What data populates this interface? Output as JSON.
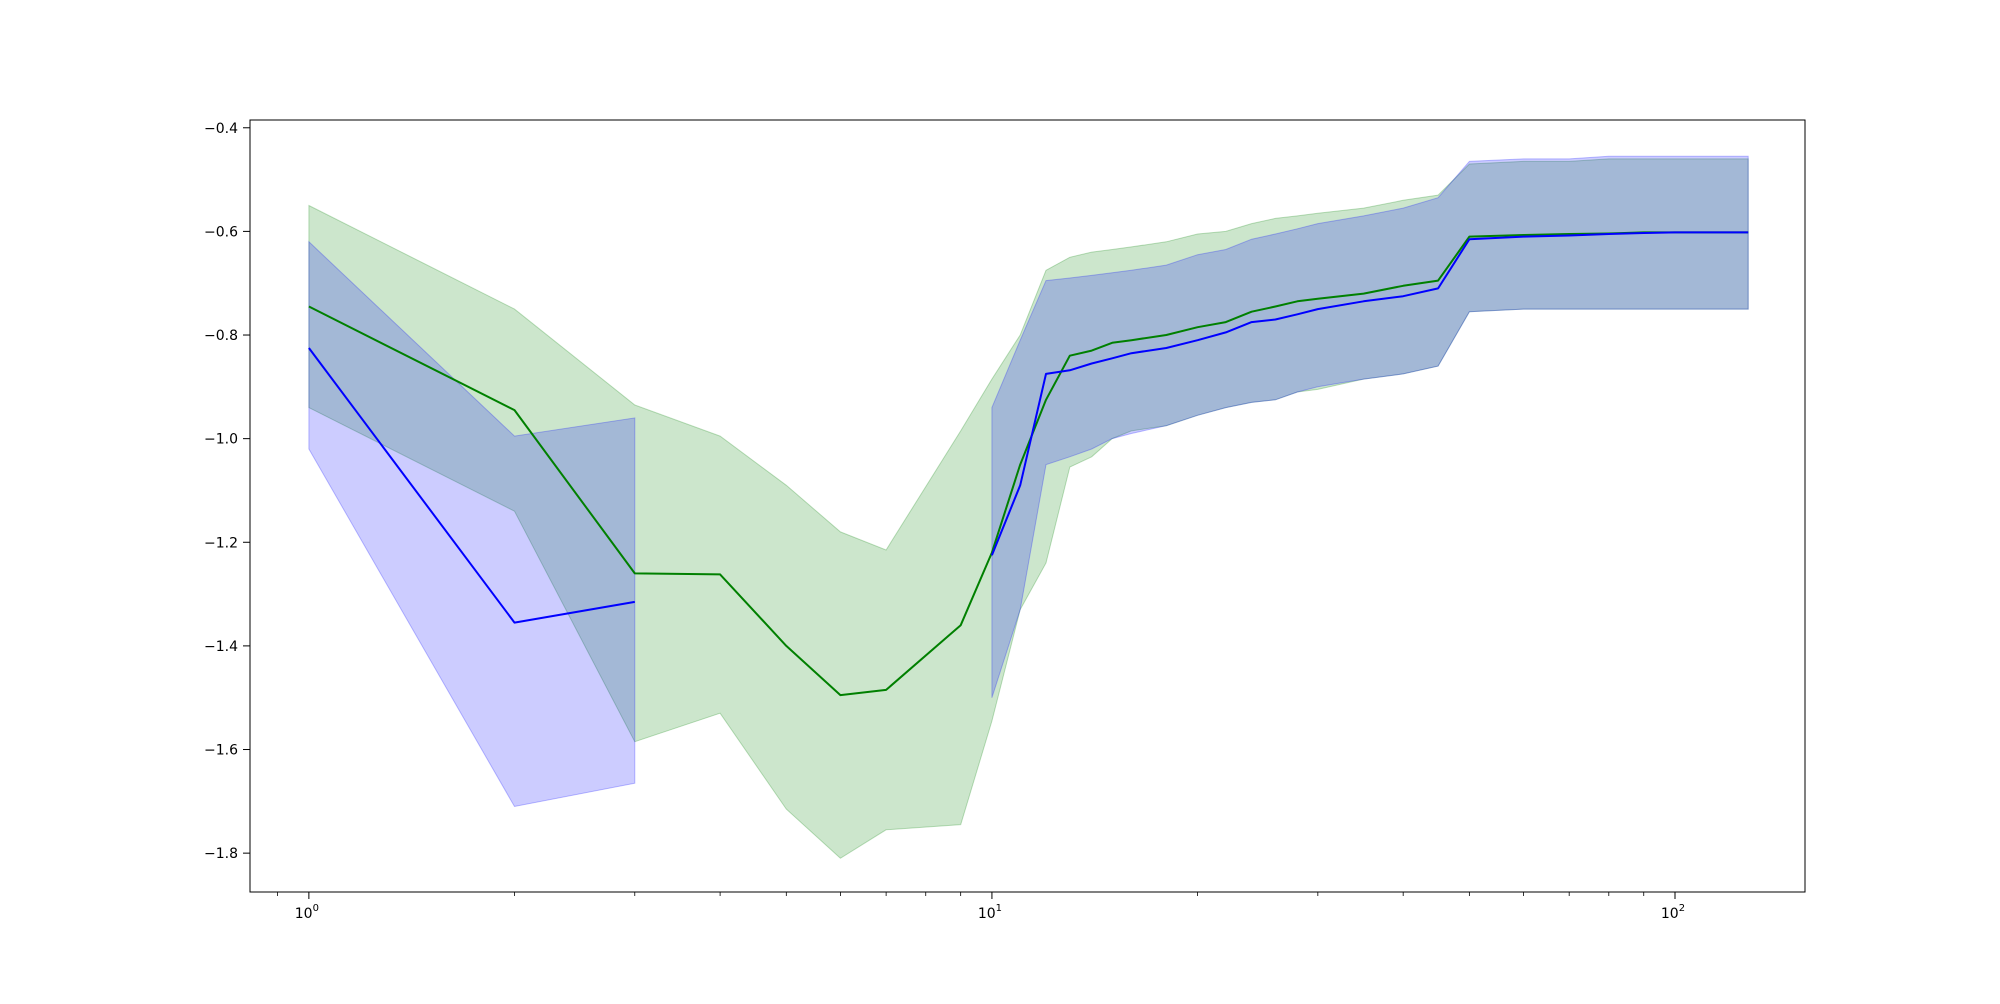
{
  "chart_data": {
    "type": "line",
    "xscale": "log",
    "xlim": [
      0.82,
      155
    ],
    "ylim": [
      -1.875,
      -0.385
    ],
    "xticks": [
      {
        "value": 1,
        "base": "10",
        "exp": "0"
      },
      {
        "value": 10,
        "base": "10",
        "exp": "1"
      },
      {
        "value": 100,
        "base": "10",
        "exp": "2"
      }
    ],
    "yticks": [
      {
        "value": -0.4,
        "label": "−0.4"
      },
      {
        "value": -0.6,
        "label": "−0.6"
      },
      {
        "value": -0.8,
        "label": "−0.8"
      },
      {
        "value": -1.0,
        "label": "−1.0"
      },
      {
        "value": -1.2,
        "label": "−1.2"
      },
      {
        "value": -1.4,
        "label": "−1.4"
      },
      {
        "value": -1.6,
        "label": "−1.6"
      },
      {
        "value": -1.8,
        "label": "−1.8"
      }
    ],
    "grid": false,
    "series": [
      {
        "color": "#008000",
        "band_color": "#008000",
        "band_opacity": 0.2,
        "segments": [
          {
            "x": [
              1,
              2,
              3,
              4,
              5,
              6,
              7,
              9,
              10,
              11,
              12,
              13,
              14,
              15,
              16,
              18,
              20,
              22,
              24,
              26,
              28,
              30,
              35,
              40,
              45,
              50,
              60,
              70,
              80,
              90,
              100,
              128
            ],
            "y": [
              -0.745,
              -0.945,
              -1.26,
              -1.262,
              -1.4,
              -1.495,
              -1.485,
              -1.36,
              -1.22,
              -1.05,
              -0.925,
              -0.84,
              -0.83,
              -0.815,
              -0.81,
              -0.8,
              -0.785,
              -0.775,
              -0.755,
              -0.745,
              -0.735,
              -0.73,
              -0.72,
              -0.705,
              -0.695,
              -0.61,
              -0.607,
              -0.605,
              -0.604,
              -0.602,
              -0.602,
              -0.602
            ],
            "lower": [
              -0.94,
              -1.14,
              -1.585,
              -1.53,
              -1.715,
              -1.81,
              -1.755,
              -1.745,
              -1.545,
              -1.33,
              -1.24,
              -1.055,
              -1.035,
              -1.0,
              -0.985,
              -0.975,
              -0.955,
              -0.94,
              -0.93,
              -0.925,
              -0.91,
              -0.905,
              -0.885,
              -0.875,
              -0.86,
              -0.755,
              -0.75,
              -0.75,
              -0.75,
              -0.75,
              -0.75,
              -0.75
            ],
            "upper": [
              -0.55,
              -0.75,
              -0.935,
              -0.995,
              -1.09,
              -1.18,
              -1.215,
              -0.985,
              -0.885,
              -0.8,
              -0.675,
              -0.65,
              -0.64,
              -0.635,
              -0.63,
              -0.62,
              -0.605,
              -0.6,
              -0.585,
              -0.575,
              -0.57,
              -0.565,
              -0.555,
              -0.54,
              -0.53,
              -0.47,
              -0.465,
              -0.465,
              -0.46,
              -0.46,
              -0.46,
              -0.46
            ]
          }
        ]
      },
      {
        "color": "#0000ff",
        "band_color": "#0000ff",
        "band_opacity": 0.2,
        "segments": [
          {
            "x": [
              1,
              2,
              3
            ],
            "y": [
              -0.825,
              -1.355,
              -1.315
            ],
            "lower": [
              -1.02,
              -1.71,
              -1.665
            ],
            "upper": [
              -0.62,
              -0.995,
              -0.96
            ]
          },
          {
            "x": [
              10,
              11,
              12,
              13,
              14,
              15,
              16,
              18,
              20,
              22,
              24,
              26,
              28,
              30,
              35,
              40,
              45,
              50,
              60,
              70,
              80,
              90,
              100,
              128
            ],
            "y": [
              -1.225,
              -1.09,
              -0.875,
              -0.868,
              -0.855,
              -0.845,
              -0.835,
              -0.825,
              -0.81,
              -0.795,
              -0.775,
              -0.77,
              -0.76,
              -0.75,
              -0.735,
              -0.725,
              -0.71,
              -0.615,
              -0.61,
              -0.608,
              -0.605,
              -0.603,
              -0.602,
              -0.602
            ],
            "lower": [
              -1.5,
              -1.33,
              -1.05,
              -1.035,
              -1.02,
              -1.0,
              -0.99,
              -0.975,
              -0.955,
              -0.94,
              -0.93,
              -0.925,
              -0.91,
              -0.9,
              -0.885,
              -0.875,
              -0.86,
              -0.755,
              -0.75,
              -0.75,
              -0.75,
              -0.75,
              -0.75,
              -0.75
            ],
            "upper": [
              -0.94,
              -0.81,
              -0.695,
              -0.69,
              -0.685,
              -0.68,
              -0.675,
              -0.665,
              -0.645,
              -0.635,
              -0.615,
              -0.605,
              -0.595,
              -0.585,
              -0.57,
              -0.555,
              -0.535,
              -0.465,
              -0.46,
              -0.46,
              -0.455,
              -0.455,
              -0.455,
              -0.455
            ]
          }
        ]
      }
    ]
  }
}
